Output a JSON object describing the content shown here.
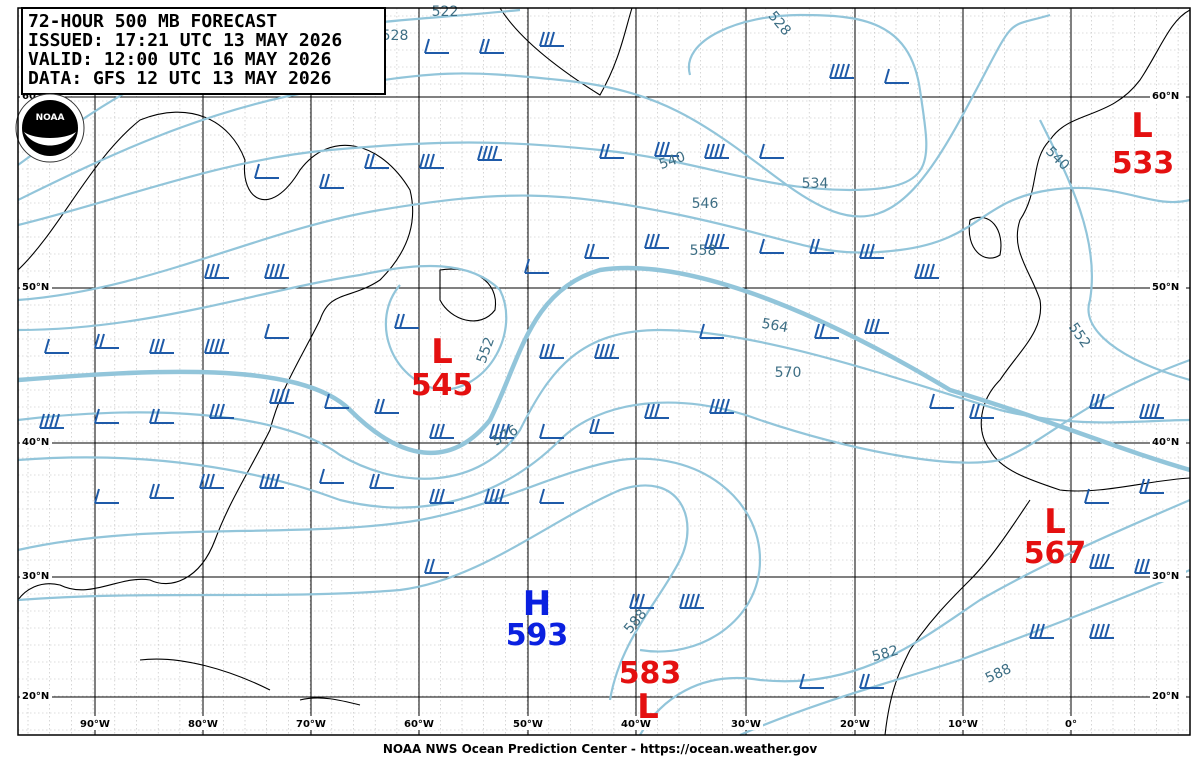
{
  "header": {
    "lines": [
      "72-HOUR 500 MB FORECAST",
      "ISSUED: 17:21 UTC 13 MAY 2026",
      "VALID:  12:00 UTC 16 MAY 2026",
      "DATA:  GFS 12 UTC 13 MAY 2026"
    ]
  },
  "logo": "NOAA",
  "lat_labels": [
    "60°N",
    "50°N",
    "40°N",
    "30°N",
    "20°N"
  ],
  "lon_labels": [
    "90°W",
    "80°W",
    "70°W",
    "60°W",
    "50°W",
    "40°W",
    "30°W",
    "20°W",
    "10°W",
    "0°"
  ],
  "contour_labels": [
    "522",
    "528",
    "528",
    "540",
    "534",
    "546",
    "558",
    "564",
    "570",
    "552",
    "552",
    "576",
    "588",
    "582",
    "588",
    "540"
  ],
  "centers": [
    {
      "type": "L",
      "value": "533"
    },
    {
      "type": "L",
      "value": "545"
    },
    {
      "type": "H",
      "value": "593"
    },
    {
      "type": "L",
      "value": "583"
    },
    {
      "type": "L",
      "value": "567"
    }
  ],
  "footer": "NOAA NWS Ocean Prediction Center - https://ocean.weather.gov"
}
